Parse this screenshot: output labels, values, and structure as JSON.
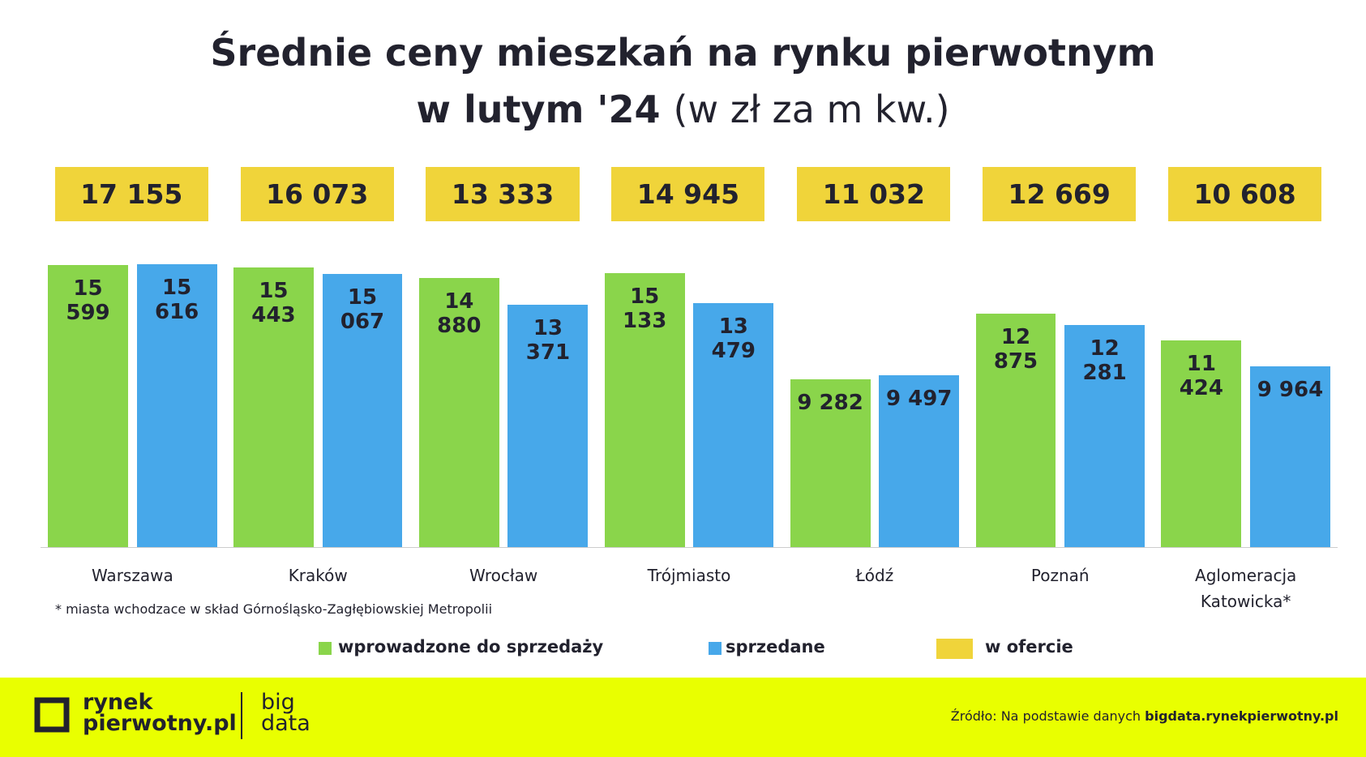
{
  "chart_data": {
    "type": "bar",
    "title": "Średnie ceny mieszkań na rynku pierwotnym",
    "title_line2": "w lutym '24",
    "subtitle": "(w zł za m kw.)",
    "categories": [
      "Warszawa",
      "Kraków",
      "Wrocław",
      "Trójmiasto",
      "Łódź",
      "Poznań",
      "Aglomeracja Katowicka*"
    ],
    "series": [
      {
        "name": "wprowadzone do sprzedaży",
        "color": "#8ad54b",
        "values": [
          15599,
          15443,
          14880,
          15133,
          9282,
          12875,
          11424
        ],
        "value_labels": [
          "15 599",
          "15 443",
          "14 880",
          "15 133",
          "9 282",
          "12 875",
          "11 424"
        ]
      },
      {
        "name": "sprzedane",
        "color": "#47a8ea",
        "values": [
          15616,
          15067,
          13371,
          13479,
          9497,
          12281,
          9964
        ],
        "value_labels": [
          "15 616",
          "15 067",
          "13 371",
          "13 479",
          "9 497",
          "12 281",
          "9 964"
        ]
      },
      {
        "name": "w ofercie",
        "color": "#f0d43a",
        "values": [
          17155,
          16073,
          13333,
          14945,
          11032,
          12669,
          10608
        ],
        "value_labels": [
          "17 155",
          "16 073",
          "13 333",
          "14 945",
          "11 032",
          "12 669",
          "10 608"
        ]
      }
    ],
    "footnote": "* miasta wchodzace w skład Górnośląsko-Zagłębiowskiej Metropolii"
  },
  "footer": {
    "brand_line1": "rynek",
    "brand_line2": "pierwotny.pl",
    "sub_line1": "big",
    "sub_line2": "data",
    "source_prefix": "Źródło: Na podstawie danych",
    "source_site": "bigdata.rynekpierwotny.pl"
  }
}
